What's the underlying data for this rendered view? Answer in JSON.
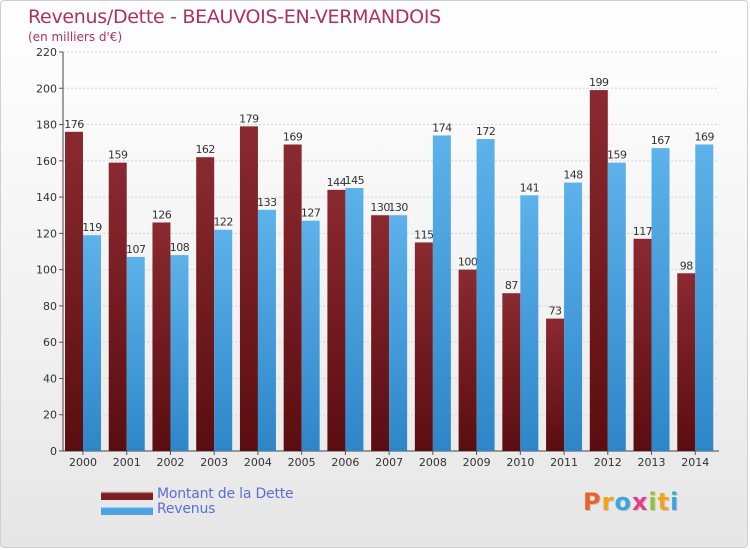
{
  "title": "Revenus/Dette - BEAUVOIS-EN-VERMANDOIS",
  "subtitle": "(en milliers d'€)",
  "logo": {
    "letters": [
      "P",
      "r",
      "o",
      "x",
      "i",
      "t",
      "i"
    ],
    "colors": [
      "#e8632a",
      "#f2a31c",
      "#3aa6dd",
      "#e83a8a",
      "#8cc63e",
      "#f2a31c",
      "#3aa6dd"
    ]
  },
  "legend": [
    {
      "label": "Montant de la Dette",
      "color": "#7a1f24"
    },
    {
      "label": "Revenus",
      "color": "#4aa3e0"
    }
  ],
  "chart_data": {
    "type": "bar",
    "categories": [
      "2000",
      "2001",
      "2002",
      "2003",
      "2004",
      "2005",
      "2006",
      "2007",
      "2008",
      "2009",
      "2010",
      "2011",
      "2012",
      "2013",
      "2014"
    ],
    "series": [
      {
        "name": "Montant de la Dette",
        "values": [
          176,
          159,
          126,
          162,
          179,
          169,
          144,
          130,
          115,
          100,
          87,
          73,
          199,
          117,
          98
        ],
        "color": "#7a1f24"
      },
      {
        "name": "Revenus",
        "values": [
          119,
          107,
          108,
          122,
          133,
          127,
          145,
          130,
          174,
          172,
          141,
          148,
          159,
          167,
          169
        ],
        "color": "#4aa3e0"
      }
    ],
    "yticks": [
      0,
      20,
      40,
      60,
      80,
      100,
      120,
      140,
      160,
      180,
      200,
      220
    ],
    "ylim": [
      0,
      220
    ],
    "grid": true
  }
}
